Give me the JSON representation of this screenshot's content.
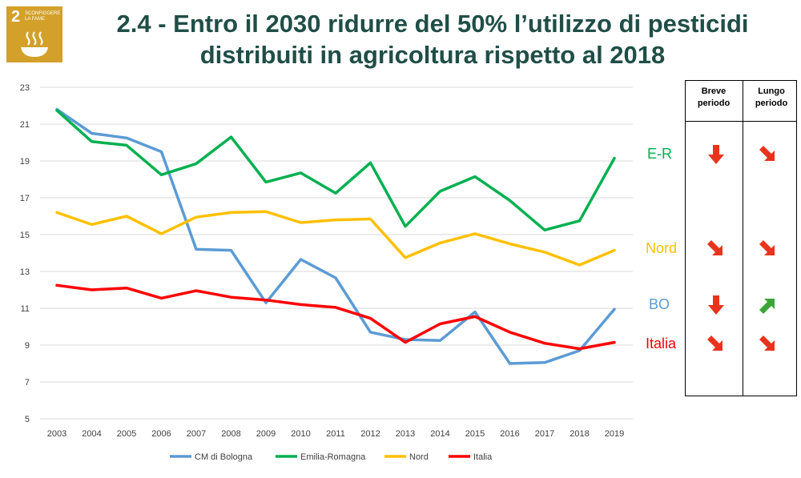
{
  "logo": {
    "number": "2",
    "text": "SCONFIGGERE LA FAME",
    "color": "#D3A029",
    "icon": "bowl-icon"
  },
  "title": {
    "line1": "2.4 - Entro il 2030 ridurre del 50% l’utilizzo di pesticidi",
    "line2": "distribuiti in agricoltura rispetto al 2018"
  },
  "chart_data": {
    "type": "line",
    "x": [
      "2003",
      "2004",
      "2005",
      "2006",
      "2007",
      "2008",
      "2009",
      "2010",
      "2011",
      "2012",
      "2013",
      "2014",
      "2015",
      "2016",
      "2017",
      "2018",
      "2019"
    ],
    "ylim": [
      5,
      23
    ],
    "yticks": [
      5,
      7,
      9,
      11,
      13,
      15,
      17,
      19,
      21,
      23
    ],
    "grid": true,
    "legend_position": "bottom",
    "series": [
      {
        "name": "CM di Bologna",
        "color": "#5B9BD5",
        "values": [
          21.8,
          20.5,
          20.25,
          19.5,
          14.2,
          14.15,
          11.3,
          13.65,
          12.65,
          9.7,
          9.3,
          9.25,
          10.8,
          8.0,
          8.05,
          8.7,
          10.95
        ]
      },
      {
        "name": "Emilia-Romagna",
        "color": "#00B050",
        "values": [
          21.75,
          20.05,
          19.85,
          18.25,
          18.85,
          20.3,
          17.85,
          18.35,
          17.25,
          18.9,
          15.45,
          17.35,
          18.15,
          16.85,
          15.25,
          15.75,
          19.15
        ]
      },
      {
        "name": "Nord",
        "color": "#FFC000",
        "values": [
          16.2,
          15.55,
          16.0,
          15.05,
          15.95,
          16.2,
          16.25,
          15.65,
          15.8,
          15.85,
          13.75,
          14.55,
          15.05,
          14.5,
          14.05,
          13.35,
          14.15
        ]
      },
      {
        "name": "Italia",
        "color": "#FF0000",
        "values": [
          12.25,
          12.0,
          12.1,
          11.55,
          11.95,
          11.6,
          11.45,
          11.2,
          11.05,
          10.45,
          9.15,
          10.15,
          10.55,
          9.7,
          9.1,
          8.8,
          9.15
        ]
      }
    ]
  },
  "trend_table": {
    "col_short": "Breve periodo",
    "col_short_lines": [
      "Breve",
      "periodo"
    ],
    "col_long": "Lungo periodo",
    "col_long_lines": [
      "Lungo",
      "periodo"
    ],
    "rows": [
      {
        "label": "E-R",
        "color": "#00B050",
        "short": "arrow-down-icon",
        "long": "arrow-down-right-icon"
      },
      {
        "label": "Nord",
        "color": "#FFC000",
        "short": "arrow-down-right-icon",
        "long": "arrow-down-right-icon"
      },
      {
        "label": "BO",
        "color": "#5B9BD5",
        "short": "arrow-down-icon",
        "long": "arrow-up-right-icon"
      },
      {
        "label": "Italia",
        "color": "#FF0000",
        "short": "arrow-down-right-icon",
        "long": "arrow-down-right-icon"
      }
    ],
    "arrow_colors": {
      "negative": "#E8341C",
      "positive": "#3AA537"
    }
  }
}
